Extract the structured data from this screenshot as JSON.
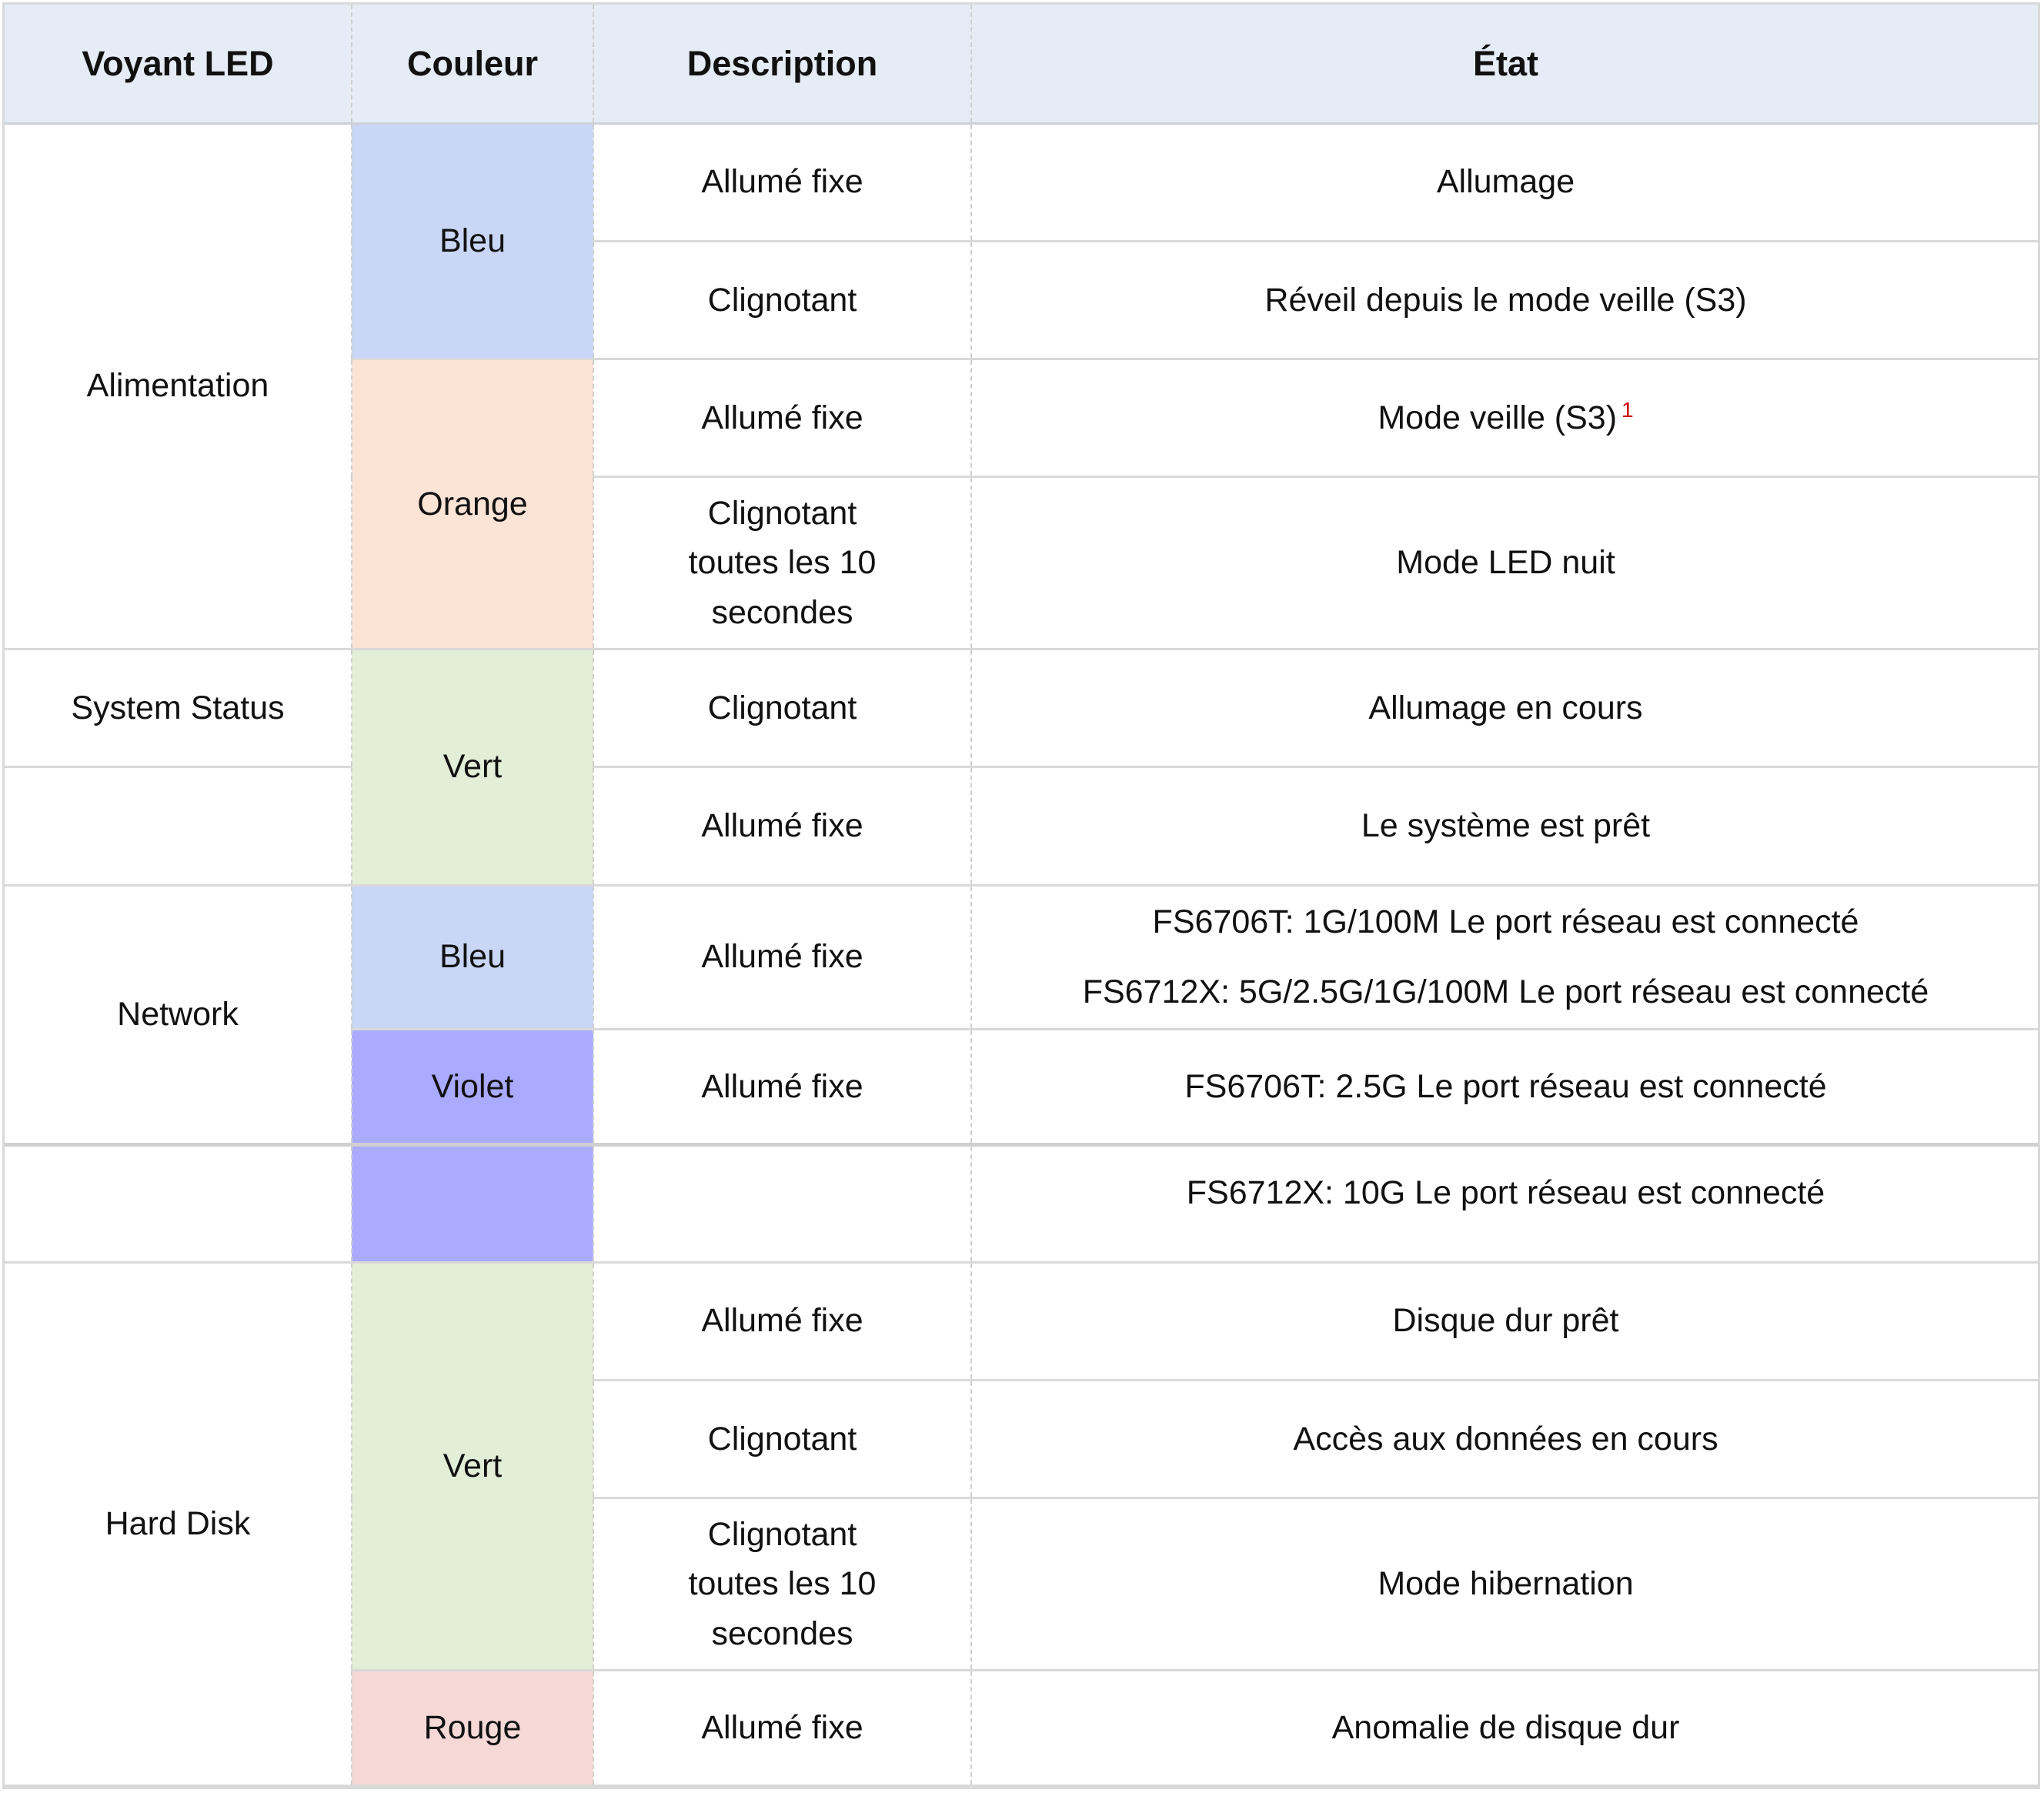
{
  "headers": {
    "voyant": "Voyant LED",
    "couleur": "Couleur",
    "description": "Description",
    "etat": "État"
  },
  "rows": {
    "alimentation": {
      "label": "Alimentation",
      "bleu": {
        "color": "Bleu",
        "r1": {
          "desc": "Allumé fixe",
          "etat": "Allumage"
        },
        "r2": {
          "desc": "Clignotant",
          "etat": "Réveil depuis le mode veille (S3)"
        }
      },
      "orange": {
        "color": "Orange",
        "r1": {
          "desc": "Allumé fixe",
          "etat": "Mode veille (S3)",
          "note": "1"
        },
        "r2": {
          "desc_l1": "Clignotant",
          "desc_l2": "toutes les 10",
          "desc_l3": "secondes",
          "etat": "Mode LED nuit"
        }
      }
    },
    "system_status": {
      "label": "System Status",
      "color": "Vert",
      "r1": {
        "desc": "Clignotant",
        "etat": "Allumage en cours"
      },
      "r2": {
        "desc": "Allumé fixe",
        "etat": "Le système est prêt"
      }
    },
    "network": {
      "label": "Network",
      "bleu": {
        "color": "Bleu",
        "desc": "Allumé fixe",
        "etat_l1": "FS6706T: 1G/100M Le port réseau est connecté",
        "etat_l2": "FS6712X: 5G/2.5G/1G/100M Le port réseau est connecté"
      },
      "violet": {
        "color": "Violet",
        "desc": "Allumé fixe",
        "etat": "FS6706T: 2.5G Le port réseau est connecté",
        "etat2": "FS6712X: 10G Le port réseau est connecté"
      }
    },
    "hard_disk": {
      "label": "Hard Disk",
      "vert": {
        "color": "Vert",
        "r1": {
          "desc": "Allumé fixe",
          "etat": "Disque dur prêt"
        },
        "r2": {
          "desc": "Clignotant",
          "etat": "Accès aux données en cours"
        },
        "r3": {
          "desc_l1": "Clignotant",
          "desc_l2": "toutes les 10",
          "desc_l3": "secondes",
          "etat": "Mode hibernation"
        }
      },
      "rouge": {
        "color": "Rouge",
        "desc": "Allumé fixe",
        "etat": "Anomalie de disque dur"
      }
    }
  },
  "swatches": {
    "bleu": "#c9d6f6",
    "orange": "#fbe3d6",
    "vert": "#e2eed8",
    "violet": "#aaaafe",
    "rouge": "#f6d9d6",
    "header": "#e5ecf6"
  }
}
